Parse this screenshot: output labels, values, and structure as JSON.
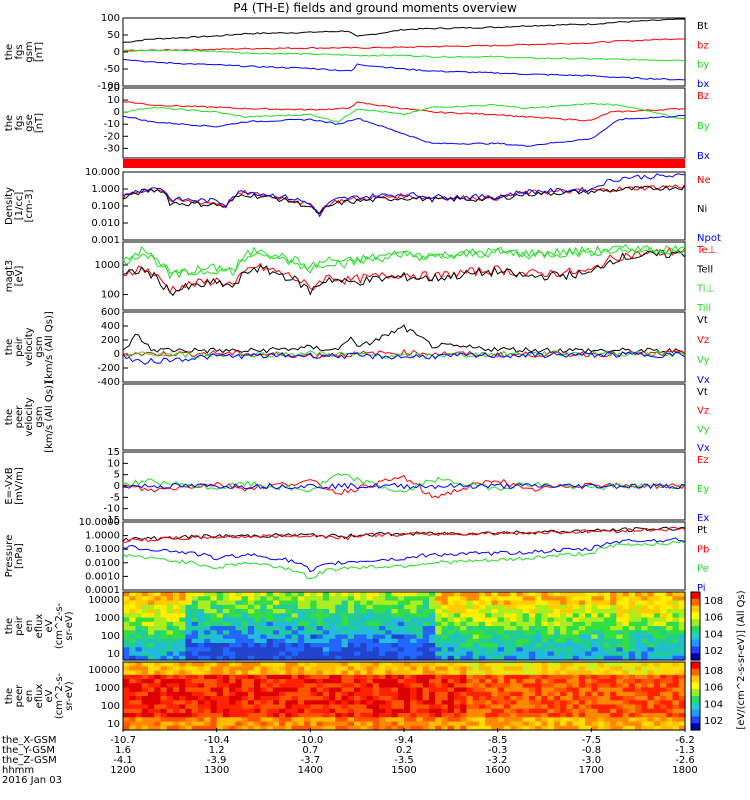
{
  "title": "P4 (TH-E) fields and ground moments overview",
  "date": "2016 Jan 03",
  "colors": {
    "black": "#000000",
    "red": "#ff0000",
    "green": "#22dd22",
    "blue": "#0000ff"
  },
  "chart_data": [
    {
      "id": "fgs_gsm",
      "type": "line",
      "ylabel": [
        "the",
        "fgs",
        "gsm",
        "[nT]"
      ],
      "yticks": [
        "100",
        "50",
        "0",
        "-50",
        "-100"
      ],
      "ylim": [
        -100,
        100
      ],
      "series": [
        {
          "name": "Bt",
          "color": "black",
          "x": [
            1200,
            1230,
            1300,
            1330,
            1400,
            1440,
            1450,
            1500,
            1530,
            1600,
            1630,
            1700,
            1730,
            1800
          ],
          "y": [
            28,
            38,
            47,
            54,
            58,
            62,
            45,
            66,
            69,
            73,
            77,
            82,
            88,
            97
          ]
        },
        {
          "name": "bz",
          "color": "red",
          "x": [
            1200,
            1230,
            1300,
            1330,
            1400,
            1450,
            1500,
            1530,
            1600,
            1630,
            1700,
            1730,
            1800
          ],
          "y": [
            2,
            5,
            8,
            10,
            12,
            12,
            14,
            16,
            19,
            22,
            27,
            32,
            40
          ]
        },
        {
          "name": "by",
          "color": "green",
          "x": [
            1200,
            1230,
            1300,
            1330,
            1400,
            1450,
            1500,
            1530,
            1600,
            1630,
            1700,
            1730,
            1800
          ],
          "y": [
            5,
            6,
            2,
            -3,
            -6,
            -10,
            -10,
            -14,
            -14,
            -18,
            -20,
            -22,
            -24
          ]
        },
        {
          "name": "bx",
          "color": "blue",
          "x": [
            1200,
            1230,
            1300,
            1330,
            1400,
            1445,
            1450,
            1500,
            1530,
            1600,
            1630,
            1700,
            1730,
            1800
          ],
          "y": [
            -20,
            -30,
            -38,
            -42,
            -48,
            -56,
            -36,
            -50,
            -56,
            -62,
            -65,
            -70,
            -75,
            -82
          ]
        }
      ]
    },
    {
      "id": "fgs_gse",
      "type": "line",
      "ylabel": [
        "the",
        "fgs",
        "gse",
        "[nT]"
      ],
      "yticks": [
        "20",
        "10",
        "0",
        "-10",
        "-20",
        "-30"
      ],
      "ylim": [
        -38,
        20
      ],
      "series": [
        {
          "name": "Bz",
          "color": "red",
          "x": [
            1200,
            1230,
            1300,
            1330,
            1400,
            1440,
            1450,
            1500,
            1530,
            1600,
            1630,
            1700,
            1720,
            1800
          ],
          "y": [
            9,
            6,
            4,
            3,
            2,
            3,
            8,
            3,
            0,
            -2,
            -4,
            -7,
            0,
            3
          ]
        },
        {
          "name": "By",
          "color": "green",
          "x": [
            1200,
            1230,
            1300,
            1330,
            1400,
            1430,
            1450,
            1500,
            1530,
            1600,
            1630,
            1700,
            1730,
            1800
          ],
          "y": [
            0,
            4,
            0,
            -4,
            -2,
            -8,
            3,
            -2,
            4,
            6,
            3,
            7,
            6,
            -6
          ]
        },
        {
          "name": "Bx",
          "color": "blue",
          "x": [
            1200,
            1230,
            1300,
            1330,
            1400,
            1430,
            1450,
            1500,
            1530,
            1600,
            1630,
            1700,
            1730,
            1800
          ],
          "y": [
            -3,
            -8,
            -12,
            -8,
            -6,
            -10,
            -5,
            -18,
            -26,
            -26,
            -28,
            -22,
            -6,
            -3
          ]
        }
      ]
    },
    {
      "id": "density",
      "type": "line",
      "scale": "log",
      "ylabel": [
        "Density",
        "[1/cc]",
        "[cm-3]"
      ],
      "yticks": [
        "10.000",
        "1.000",
        "0.100",
        "0.010",
        "0.001"
      ],
      "ylim": [
        0.001,
        10
      ],
      "series": [
        {
          "name": "Ne",
          "color": "red",
          "x": [
            1200,
            1220,
            1240,
            1250,
            1300,
            1310,
            1330,
            1340,
            1400,
            1410,
            1430,
            1500,
            1530,
            1600,
            1630,
            1700,
            1730,
            1800
          ],
          "y": [
            0.3,
            0.8,
            1.0,
            0.2,
            0.15,
            0.1,
            0.6,
            0.5,
            0.1,
            0.05,
            0.2,
            0.4,
            0.3,
            0.3,
            0.6,
            0.8,
            1.0,
            1.5
          ]
        },
        {
          "name": "Ni",
          "color": "black",
          "x": [
            1200,
            1220,
            1240,
            1250,
            1300,
            1310,
            1330,
            1340,
            1400,
            1410,
            1430,
            1500,
            1530,
            1600,
            1630,
            1700,
            1730,
            1800
          ],
          "y": [
            0.25,
            0.7,
            0.9,
            0.15,
            0.12,
            0.08,
            0.5,
            0.4,
            0.08,
            0.03,
            0.15,
            0.3,
            0.25,
            0.25,
            0.5,
            0.7,
            0.9,
            1.3
          ]
        },
        {
          "name": "Npot",
          "color": "blue",
          "x": [
            1200,
            1220,
            1240,
            1250,
            1300,
            1310,
            1330,
            1340,
            1400,
            1410,
            1430,
            1500,
            1530,
            1600,
            1630,
            1700,
            1720,
            1740,
            1800
          ],
          "y": [
            0.35,
            0.9,
            1.2,
            0.25,
            0.2,
            0.12,
            0.8,
            0.6,
            0.12,
            0.02,
            0.25,
            0.5,
            0.35,
            0.35,
            0.7,
            0.9,
            3.0,
            5.0,
            6.0
          ]
        }
      ]
    },
    {
      "id": "temperature",
      "type": "line",
      "scale": "log",
      "ylabel": [
        "magt3",
        "[eV]"
      ],
      "yticks": [
        "1000",
        "100"
      ],
      "ylim": [
        30,
        6000
      ],
      "series": [
        {
          "name": "Te⊥",
          "color": "red",
          "x": [
            1200,
            1220,
            1240,
            1250,
            1300,
            1320,
            1340,
            1400,
            1420,
            1440,
            1500,
            1530,
            1600,
            1630,
            1700,
            1730,
            1800
          ],
          "y": [
            500,
            800,
            300,
            150,
            300,
            200,
            900,
            150,
            400,
            300,
            500,
            400,
            700,
            500,
            600,
            2000,
            3000
          ]
        },
        {
          "name": "Tell",
          "color": "black",
          "x": [
            1200,
            1220,
            1240,
            1250,
            1300,
            1320,
            1340,
            1400,
            1420,
            1440,
            1500,
            1530,
            1600,
            1630,
            1700,
            1730,
            1800
          ],
          "y": [
            400,
            700,
            250,
            120,
            250,
            180,
            800,
            120,
            350,
            250,
            400,
            350,
            600,
            400,
            500,
            1800,
            2500
          ]
        },
        {
          "name": "Ti⊥",
          "color": "green",
          "x": [
            1200,
            1220,
            1240,
            1250,
            1300,
            1320,
            1340,
            1400,
            1420,
            1440,
            1500,
            1530,
            1600,
            1630,
            1700,
            1730,
            1800
          ],
          "y": [
            1500,
            3000,
            1200,
            500,
            800,
            700,
            3000,
            800,
            1500,
            1300,
            2500,
            2000,
            3000,
            2500,
            3000,
            3500,
            3500
          ]
        },
        {
          "name": "Till",
          "color": "green",
          "x": [
            1200,
            1220,
            1240,
            1250,
            1300,
            1320,
            1340,
            1400,
            1420,
            1440,
            1500,
            1530,
            1600,
            1630,
            1700,
            1730,
            1800
          ],
          "y": [
            1200,
            2500,
            1000,
            400,
            700,
            600,
            2500,
            700,
            1300,
            1100,
            2200,
            1800,
            2600,
            2200,
            2700,
            3200,
            3200
          ]
        }
      ]
    },
    {
      "id": "velocity_peir",
      "type": "line",
      "ylabel": [
        "the",
        "peir",
        "velocity",
        "gsm",
        "[km/s (All Qs)]"
      ],
      "yticks": [
        "600",
        "400",
        "200",
        "0",
        "-200",
        "-400"
      ],
      "ylim": [
        -400,
        600
      ],
      "series": [
        {
          "name": "Vt",
          "color": "black",
          "x": [
            1200,
            1215,
            1230,
            1300,
            1330,
            1400,
            1430,
            1445,
            1450,
            1500,
            1530,
            1600,
            1630,
            1700,
            1800
          ],
          "y": [
            40,
            280,
            60,
            50,
            40,
            90,
            60,
            280,
            80,
            380,
            120,
            70,
            60,
            50,
            40
          ]
        },
        {
          "name": "Vz",
          "color": "red",
          "x": [
            1200,
            1300,
            1400,
            1500,
            1600,
            1700,
            1800
          ],
          "y": [
            0,
            10,
            -20,
            20,
            -10,
            0,
            5
          ]
        },
        {
          "name": "Vy",
          "color": "green",
          "x": [
            1200,
            1300,
            1400,
            1500,
            1600,
            1700,
            1800
          ],
          "y": [
            0,
            -20,
            10,
            -30,
            0,
            10,
            0
          ]
        },
        {
          "name": "Vx",
          "color": "blue",
          "x": [
            1200,
            1215,
            1300,
            1400,
            1500,
            1600,
            1700,
            1800
          ],
          "y": [
            -20,
            -120,
            -30,
            -20,
            -40,
            -20,
            -10,
            -10
          ]
        }
      ]
    },
    {
      "id": "velocity_peer",
      "type": "line",
      "ylabel": [
        "the",
        "peer",
        "velocity",
        "gsm",
        "[km/s (All Qs)]"
      ],
      "yticks": [],
      "ylim": [
        -400,
        600
      ],
      "series": [
        {
          "name": "Vt",
          "color": "black",
          "x": [],
          "y": []
        },
        {
          "name": "Vz",
          "color": "red",
          "x": [],
          "y": []
        },
        {
          "name": "Vy",
          "color": "green",
          "x": [],
          "y": []
        },
        {
          "name": "Vx",
          "color": "blue",
          "x": [],
          "y": []
        }
      ]
    },
    {
      "id": "efield",
      "type": "line",
      "ylabel": [
        "E=-VxB",
        "[mV/m]"
      ],
      "yticks": [
        "15",
        "10",
        "5",
        "0",
        "-5",
        "-10",
        "-15"
      ],
      "ylim": [
        -15,
        15
      ],
      "series": [
        {
          "name": "Ez",
          "color": "red",
          "x": [
            1200,
            1230,
            1300,
            1330,
            1400,
            1430,
            1500,
            1530,
            1600,
            1630,
            1700,
            1730,
            1800
          ],
          "y": [
            0,
            -2,
            1,
            -1,
            2,
            -3,
            4,
            -5,
            3,
            -2,
            1,
            0,
            0
          ]
        },
        {
          "name": "Ey",
          "color": "green",
          "x": [
            1200,
            1230,
            1300,
            1330,
            1400,
            1430,
            1500,
            1530,
            1600,
            1630,
            1700,
            1730,
            1800
          ],
          "y": [
            1,
            2,
            -1,
            1,
            -2,
            5,
            -3,
            3,
            -1,
            1,
            -1,
            0,
            0
          ]
        },
        {
          "name": "Ex",
          "color": "blue",
          "x": [
            1200,
            1300,
            1400,
            1500,
            1600,
            1700,
            1800
          ],
          "y": [
            0,
            0,
            0,
            0,
            0,
            0,
            0
          ]
        }
      ]
    },
    {
      "id": "pressure",
      "type": "line",
      "scale": "log",
      "ylabel": [
        "Pressure",
        "[nPa]"
      ],
      "yticks": [
        "10.0000",
        "1.0000",
        "0.1000",
        "0.0100",
        "0.0010",
        "0.0001"
      ],
      "ylim": [
        0.0001,
        10
      ],
      "series": [
        {
          "name": "Pt",
          "color": "black",
          "x": [
            1200,
            1300,
            1400,
            1440,
            1450,
            1500,
            1600,
            1700,
            1800
          ],
          "y": [
            0.5,
            0.9,
            1.1,
            0.8,
            1.2,
            1.3,
            1.6,
            2.2,
            3.5
          ]
        },
        {
          "name": "Pb",
          "color": "red",
          "x": [
            1200,
            1300,
            1400,
            1440,
            1450,
            1500,
            1600,
            1700,
            1800
          ],
          "y": [
            0.4,
            0.8,
            1.0,
            0.7,
            1.1,
            1.2,
            1.5,
            2.0,
            3.2
          ]
        },
        {
          "name": "Pe",
          "color": "green",
          "x": [
            1200,
            1230,
            1300,
            1330,
            1400,
            1430,
            1500,
            1530,
            1600,
            1630,
            1700,
            1730,
            1800
          ],
          "y": [
            0.04,
            0.02,
            0.004,
            0.01,
            0.0005,
            0.004,
            0.006,
            0.01,
            0.015,
            0.02,
            0.05,
            0.2,
            0.3
          ]
        },
        {
          "name": "Pi",
          "color": "blue",
          "x": [
            1200,
            1230,
            1300,
            1330,
            1400,
            1430,
            1500,
            1530,
            1600,
            1630,
            1700,
            1730,
            1800
          ],
          "y": [
            0.15,
            0.1,
            0.02,
            0.04,
            0.002,
            0.01,
            0.02,
            0.04,
            0.05,
            0.06,
            0.1,
            0.4,
            0.5
          ]
        }
      ]
    },
    {
      "id": "peir_spectrogram",
      "type": "heatmap",
      "ylabel": [
        "the",
        "peir",
        "en",
        "eflux",
        "eV",
        "(cm^2-s-",
        "sr-eV)"
      ],
      "yticks": [
        "10000",
        "1000",
        "100",
        "10"
      ],
      "colorbar_ticks": [
        "10^8",
        "10^6",
        "10^4",
        "10^2"
      ]
    },
    {
      "id": "peer_spectrogram",
      "type": "heatmap",
      "ylabel": [
        "the",
        "peer",
        "en",
        "eflux",
        "eV",
        "(cm^2-s-",
        "sr-eV)"
      ],
      "yticks": [
        "10000",
        "1000",
        "100",
        "10"
      ],
      "colorbar_ticks": [
        "10^8",
        "10^6",
        "10^4",
        "10^2"
      ]
    }
  ],
  "colorbar_label": "[eV/(cm^2-s-sr-eV)] (All Qs)",
  "xaxis": {
    "rows": [
      {
        "label": "the_X-GSM",
        "values": [
          "-10.7",
          "-10.4",
          "-10.0",
          "-9.4",
          "-8.5",
          "-7.5",
          "-6.2"
        ]
      },
      {
        "label": "the_Y-GSM",
        "values": [
          "1.6",
          "1.2",
          "0.7",
          "0.2",
          "-0.3",
          "-0.8",
          "-1.3"
        ]
      },
      {
        "label": "the_Z-GSM",
        "values": [
          "-4.1",
          "-3.9",
          "-3.7",
          "-3.5",
          "-3.2",
          "-3.0",
          "-2.6"
        ]
      },
      {
        "label": "hhmm",
        "values": [
          "1200",
          "1300",
          "1400",
          "1500",
          "1600",
          "1700",
          "1800"
        ]
      }
    ],
    "xlim": [
      1200,
      1800
    ]
  }
}
